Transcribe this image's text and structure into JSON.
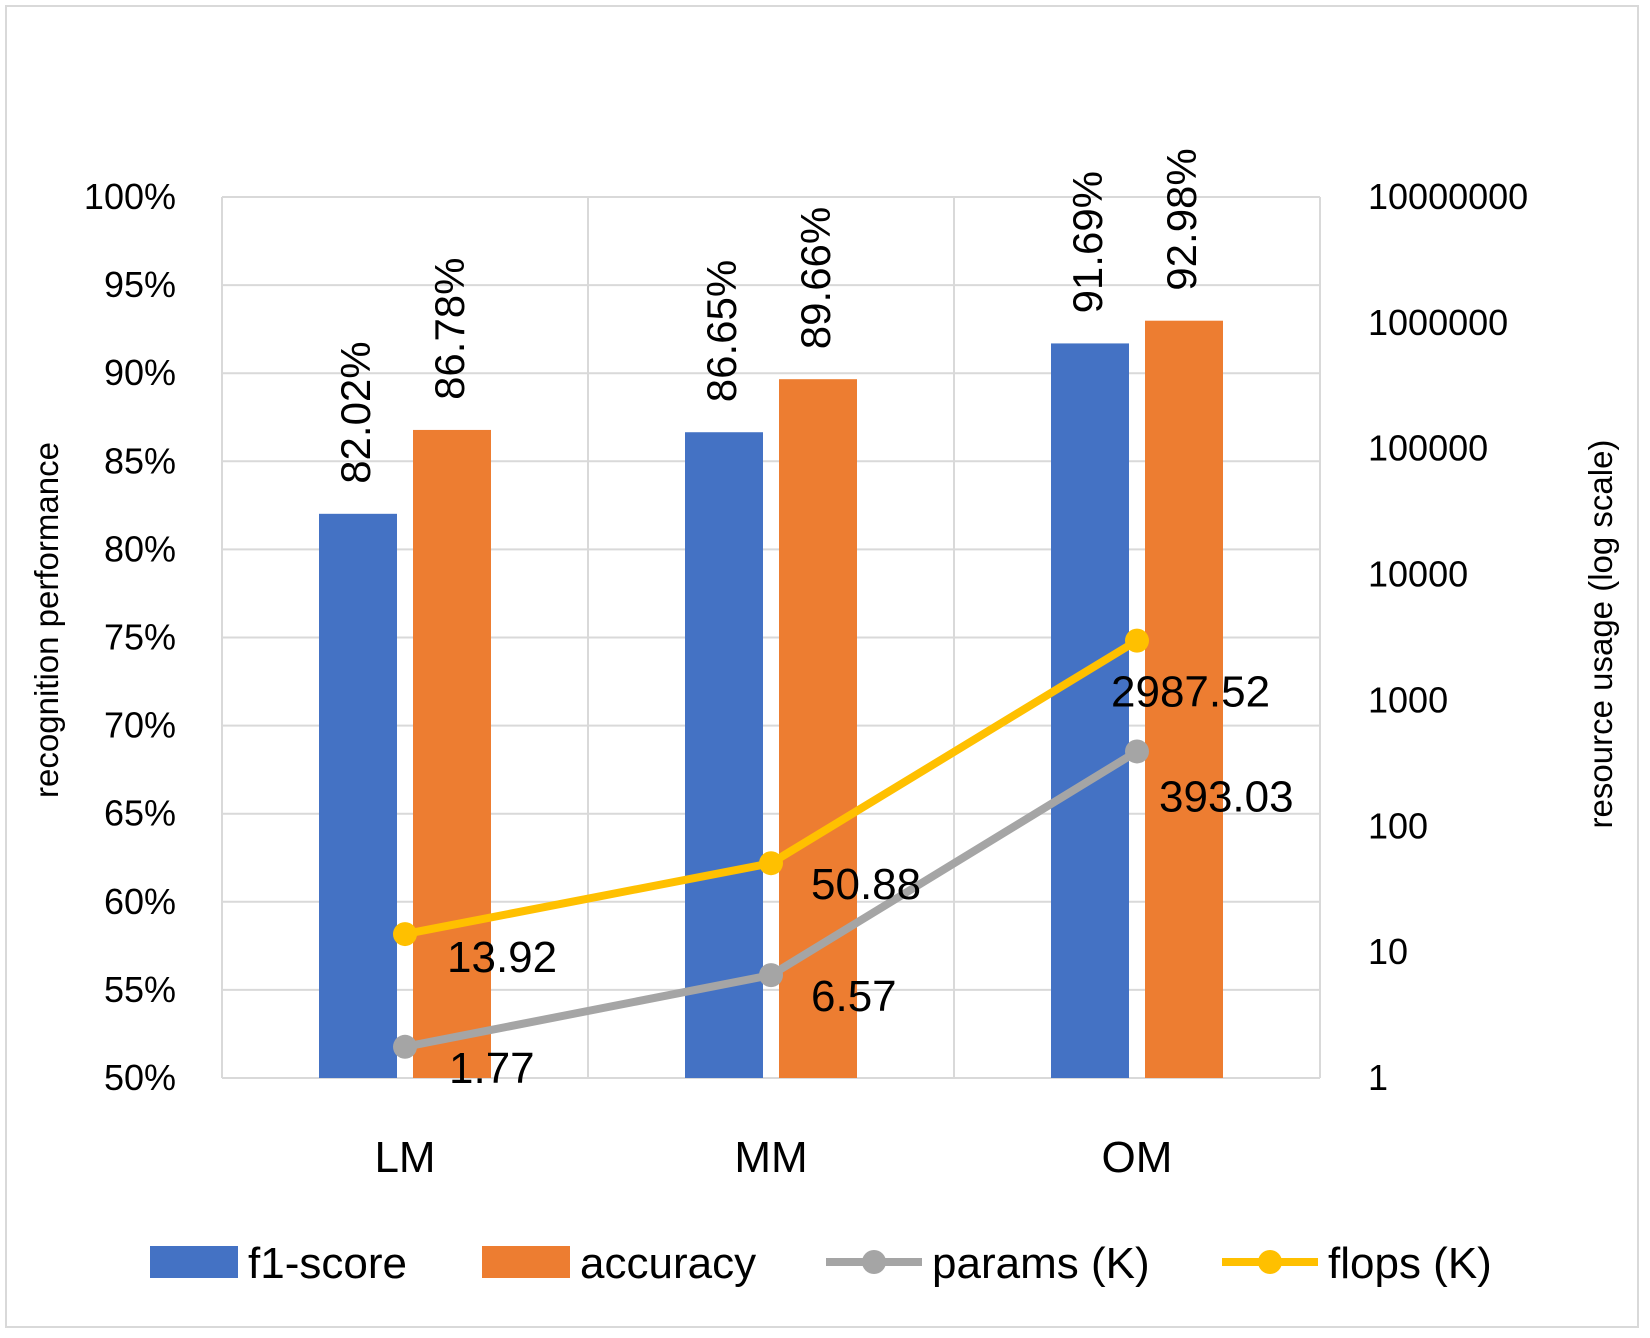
{
  "chart_data": {
    "type": "bar",
    "categories": [
      "LM",
      "MM",
      "OM"
    ],
    "series": [
      {
        "name": "f1-score",
        "kind": "bar",
        "axis": "left",
        "color": "#4472C4",
        "values": [
          82.02,
          86.65,
          91.69
        ],
        "labels": [
          "82.02%",
          "86.65%",
          "91.69%"
        ]
      },
      {
        "name": "accuracy",
        "kind": "bar",
        "axis": "left",
        "color": "#ED7D31",
        "values": [
          86.78,
          89.66,
          92.98
        ],
        "labels": [
          "86.78%",
          "89.66%",
          "92.98%"
        ]
      },
      {
        "name": "params (K)",
        "kind": "line",
        "axis": "right",
        "color": "#A5A5A5",
        "values": [
          1.77,
          6.57,
          393.03
        ],
        "labels": [
          "1.77",
          "6.57",
          "393.03"
        ]
      },
      {
        "name": "flops (K)",
        "kind": "line",
        "axis": "right",
        "color": "#FFC000",
        "values": [
          13.92,
          50.88,
          2987.52
        ],
        "labels": [
          "13.92",
          "50.88",
          "2987.52"
        ]
      }
    ],
    "y_left": {
      "label": "recognition performance",
      "min": 50,
      "max": 100,
      "step": 5,
      "tick_labels": [
        "50%",
        "55%",
        "60%",
        "65%",
        "70%",
        "75%",
        "80%",
        "85%",
        "90%",
        "95%",
        "100%"
      ]
    },
    "y_right": {
      "label": "resource usage  (log scale)",
      "scale": "log",
      "min": 1,
      "max": 10000000,
      "tick_labels": [
        "1",
        "10",
        "100",
        "1000",
        "10000",
        "100000",
        "1000000",
        "10000000"
      ]
    },
    "grid": true,
    "legend_position": "bottom"
  }
}
